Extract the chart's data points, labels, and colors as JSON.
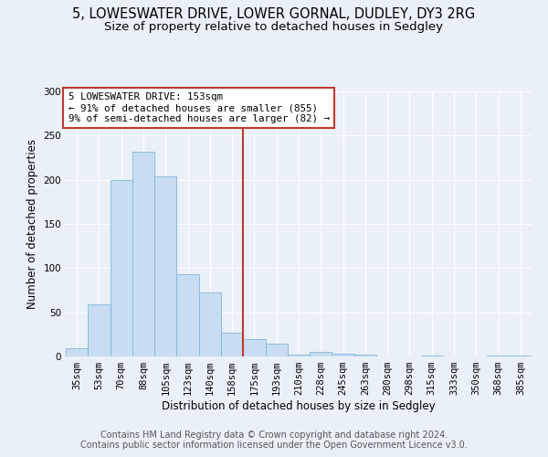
{
  "title": "5, LOWESWATER DRIVE, LOWER GORNAL, DUDLEY, DY3 2RG",
  "subtitle": "Size of property relative to detached houses in Sedgley",
  "xlabel": "Distribution of detached houses by size in Sedgley",
  "ylabel": "Number of detached properties",
  "bin_labels": [
    "35sqm",
    "53sqm",
    "70sqm",
    "88sqm",
    "105sqm",
    "123sqm",
    "140sqm",
    "158sqm",
    "175sqm",
    "193sqm",
    "210sqm",
    "228sqm",
    "245sqm",
    "263sqm",
    "280sqm",
    "298sqm",
    "315sqm",
    "333sqm",
    "350sqm",
    "368sqm",
    "385sqm"
  ],
  "bar_heights": [
    9,
    59,
    200,
    232,
    204,
    93,
    72,
    27,
    20,
    15,
    2,
    5,
    3,
    2,
    0,
    0,
    1,
    0,
    0,
    1,
    1
  ],
  "bar_color": "#c9ddf2",
  "bar_edge_color": "#7fb3d9",
  "vline_x": 7.5,
  "vline_color": "#c0392b",
  "annotation_box_text": "5 LOWESWATER DRIVE: 153sqm\n← 91% of detached houses are smaller (855)\n9% of semi-detached houses are larger (82) →",
  "annotation_box_color": "#c0392b",
  "ylim": [
    0,
    300
  ],
  "yticks": [
    0,
    50,
    100,
    150,
    200,
    250,
    300
  ],
  "footer_text": "Contains HM Land Registry data © Crown copyright and database right 2024.\nContains public sector information licensed under the Open Government Licence v3.0.",
  "background_color": "#eaf0f8",
  "grid_color": "#ffffff",
  "title_fontsize": 10.5,
  "subtitle_fontsize": 9.5,
  "axis_label_fontsize": 8.5,
  "tick_fontsize": 7.5,
  "footer_fontsize": 7.0
}
